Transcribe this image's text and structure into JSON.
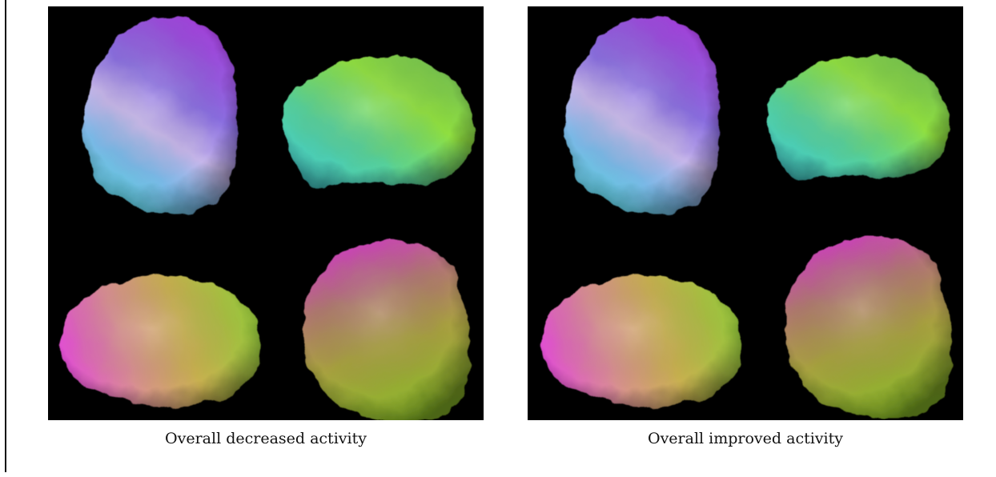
{
  "figures": [
    {
      "caption": "Overall decreased activity"
    },
    {
      "caption": "Overall improved activity"
    }
  ]
}
